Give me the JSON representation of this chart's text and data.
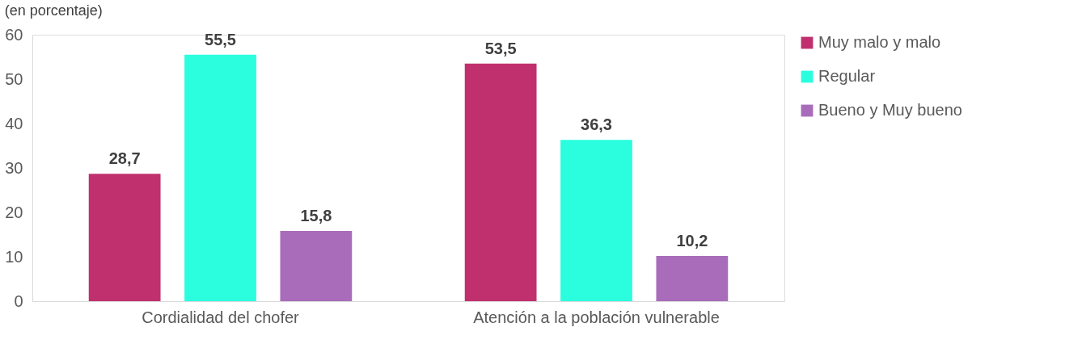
{
  "chart_data": {
    "type": "bar",
    "title": "(en porcentaje)",
    "categories": [
      "Cordialidad del chofer",
      "Atención a la población vulnerable"
    ],
    "series": [
      {
        "name": "Muy malo y malo",
        "color": "#c0306e",
        "values": [
          28.7,
          53.5
        ],
        "value_labels": [
          "28,7",
          "53,5"
        ]
      },
      {
        "name": "Regular",
        "color": "#2afedf",
        "values": [
          55.5,
          36.3
        ],
        "value_labels": [
          "55,5",
          "36,3"
        ]
      },
      {
        "name": "Bueno y Muy bueno",
        "color": "#a86cba",
        "values": [
          15.8,
          10.2
        ],
        "value_labels": [
          "15,8",
          "10,2"
        ]
      }
    ],
    "ylim": [
      0,
      60
    ],
    "yticks": [
      0,
      10,
      20,
      30,
      40,
      50,
      60
    ],
    "grid": false,
    "legend": "right"
  }
}
